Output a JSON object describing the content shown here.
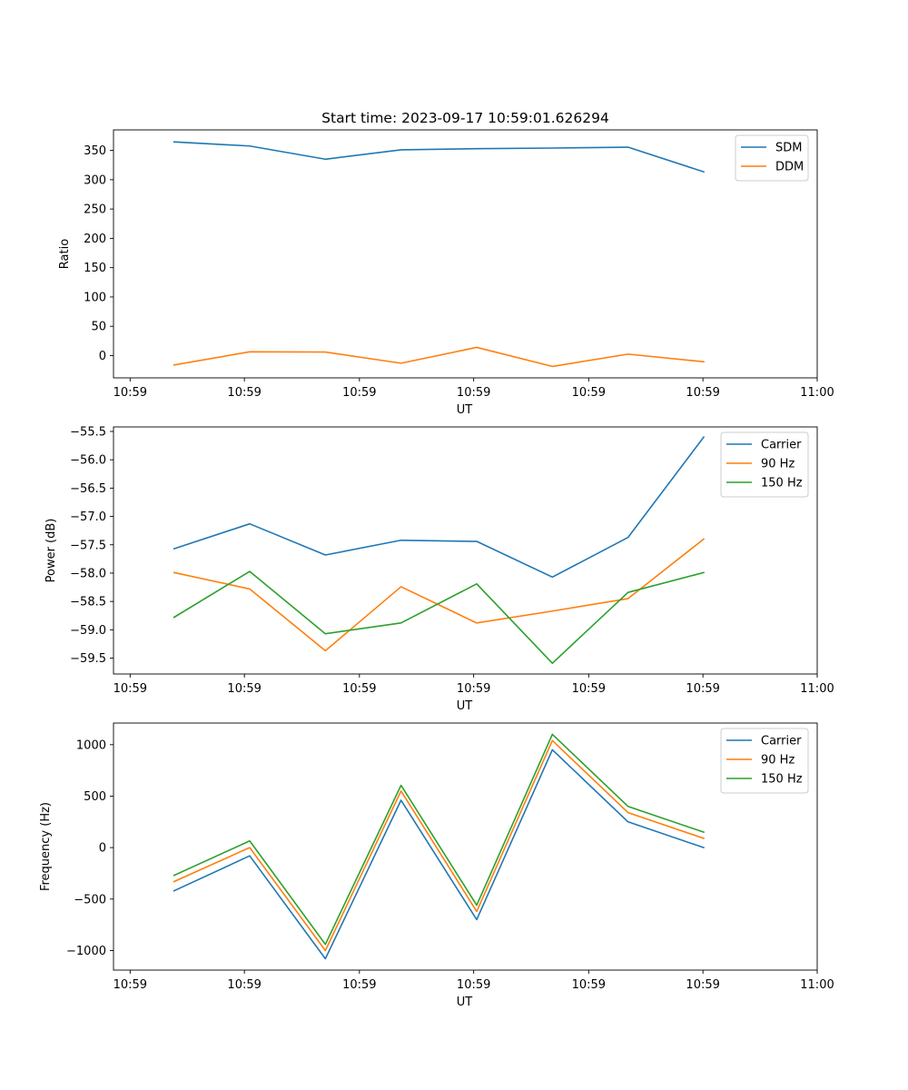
{
  "colors": {
    "blue": "#1f77b4",
    "orange": "#ff7f0e",
    "green": "#2ca02c",
    "frame": "#000000",
    "legend_border": "#cccccc"
  },
  "chart_data": [
    {
      "type": "line",
      "title": "Start time: 2023-09-17 10:59:01.626294",
      "xlabel": "UT",
      "ylabel": "Ratio",
      "x": [
        1,
        2,
        3,
        4,
        5,
        6,
        7,
        8
      ],
      "xlim": [
        0.2,
        9.5
      ],
      "xticks": [
        0.42,
        1.93,
        3.45,
        4.96,
        6.48,
        7.99,
        9.5
      ],
      "xtick_labels": [
        "10:59",
        "10:59",
        "10:59",
        "10:59",
        "10:59",
        "10:59",
        "11:00"
      ],
      "ylim": [
        -38,
        385
      ],
      "yticks": [
        0,
        50,
        100,
        150,
        200,
        250,
        300,
        350
      ],
      "ytick_labels": [
        "0",
        "50",
        "100",
        "150",
        "200",
        "250",
        "300",
        "350"
      ],
      "legend": "top-right",
      "grid": false,
      "series": [
        {
          "name": "SDM",
          "color": "#1f77b4",
          "values": [
            364.5,
            357.5,
            335.0,
            351.0,
            353.0,
            354.0,
            355.5,
            313.5
          ]
        },
        {
          "name": "DDM",
          "color": "#ff7f0e",
          "values": [
            -16.0,
            6.5,
            6.0,
            -13.0,
            14.0,
            -18.5,
            2.5,
            -10.5
          ]
        }
      ]
    },
    {
      "type": "line",
      "title": "",
      "xlabel": "UT",
      "ylabel": "Power (dB)",
      "x": [
        1,
        2,
        3,
        4,
        5,
        6,
        7,
        8
      ],
      "xlim": [
        0.2,
        9.5
      ],
      "xticks": [
        0.42,
        1.93,
        3.45,
        4.96,
        6.48,
        7.99,
        9.5
      ],
      "xtick_labels": [
        "10:59",
        "10:59",
        "10:59",
        "10:59",
        "10:59",
        "10:59",
        "11:00"
      ],
      "ylim": [
        -59.78,
        -55.42
      ],
      "yticks": [
        -59.5,
        -59.0,
        -58.5,
        -58.0,
        -57.5,
        -57.0,
        -56.5,
        -56.0,
        -55.5
      ],
      "ytick_labels": [
        "−59.5",
        "−59.0",
        "−58.5",
        "−58.0",
        "−57.5",
        "−57.0",
        "−56.5",
        "−56.0",
        "−55.5"
      ],
      "legend": "top-right",
      "grid": false,
      "series": [
        {
          "name": "Carrier",
          "color": "#1f77b4",
          "values": [
            -57.57,
            -57.13,
            -57.68,
            -57.42,
            -57.44,
            -58.07,
            -57.37,
            -55.6
          ]
        },
        {
          "name": "90 Hz",
          "color": "#ff7f0e",
          "values": [
            -57.99,
            -58.28,
            -59.37,
            -58.24,
            -58.88,
            -58.67,
            -58.45,
            -57.4
          ]
        },
        {
          "name": "150 Hz",
          "color": "#2ca02c",
          "values": [
            -58.78,
            -57.97,
            -59.07,
            -58.88,
            -58.19,
            -59.59,
            -58.34,
            -57.99
          ]
        }
      ]
    },
    {
      "type": "line",
      "title": "",
      "xlabel": "UT",
      "ylabel": "Frequency (Hz)",
      "x": [
        1,
        2,
        3,
        4,
        5,
        6,
        7,
        8
      ],
      "xlim": [
        0.2,
        9.5
      ],
      "xticks": [
        0.42,
        1.93,
        3.45,
        4.96,
        6.48,
        7.99,
        9.5
      ],
      "xtick_labels": [
        "10:59",
        "10:59",
        "10:59",
        "10:59",
        "10:59",
        "10:59",
        "11:00"
      ],
      "ylim": [
        -1190,
        1210
      ],
      "yticks": [
        -1000,
        -500,
        0,
        500,
        1000
      ],
      "ytick_labels": [
        "−1000",
        "−500",
        "0",
        "500",
        "1000"
      ],
      "legend": "top-right",
      "grid": false,
      "series": [
        {
          "name": "Carrier",
          "color": "#1f77b4",
          "values": [
            -420,
            -80,
            -1080,
            460,
            -700,
            950,
            250,
            0
          ]
        },
        {
          "name": "90 Hz",
          "color": "#ff7f0e",
          "values": [
            -330,
            0,
            -1000,
            550,
            -620,
            1040,
            340,
            90
          ]
        },
        {
          "name": "150 Hz",
          "color": "#2ca02c",
          "values": [
            -270,
            65,
            -940,
            605,
            -560,
            1100,
            400,
            150
          ]
        }
      ]
    }
  ]
}
